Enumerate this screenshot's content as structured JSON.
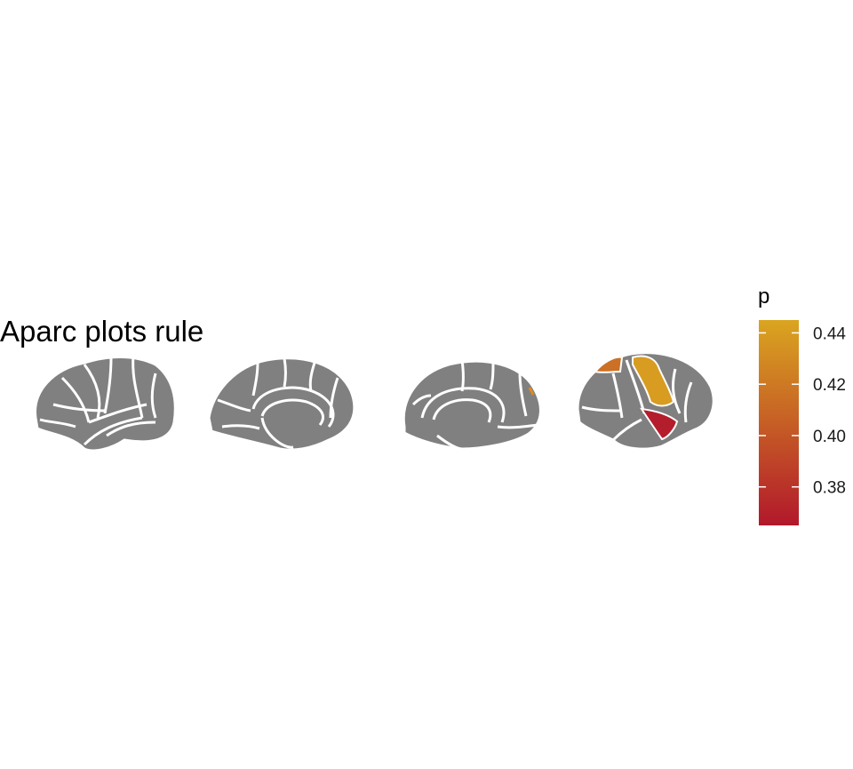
{
  "chart_data": {
    "type": "heatmap",
    "title": "Aparc plots rule",
    "atlas": "aparc",
    "views": [
      "left lateral",
      "left medial",
      "right medial",
      "right lateral"
    ],
    "base_region_color": "#808080",
    "border_color": "#ffffff",
    "legend": {
      "title": "p",
      "placement": "right",
      "range": [
        0.365,
        0.445
      ],
      "ticks": [
        0.38,
        0.4,
        0.42,
        0.44
      ],
      "tick_labels": [
        "0.38",
        "0.40",
        "0.42",
        "0.44"
      ],
      "color_low": "#B2182B",
      "color_high": "#DAA520"
    },
    "highlighted_regions": [
      {
        "view": "right lateral",
        "region": "superior parietal",
        "p": 0.415
      },
      {
        "view": "right lateral",
        "region": "supramarginal",
        "p": 0.44
      },
      {
        "view": "right lateral",
        "region": "superior temporal",
        "p": 0.368
      }
    ]
  }
}
